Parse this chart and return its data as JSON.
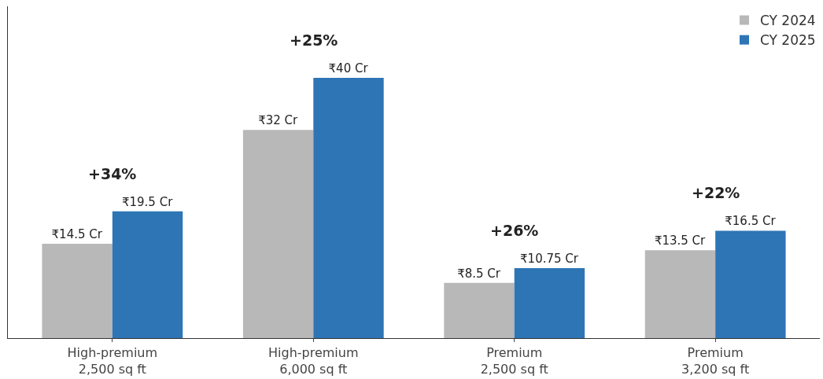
{
  "chart_data": {
    "type": "bar",
    "categories": [
      "High-premium\n2,500 sq ft",
      "High-premium\n6,000 sq ft",
      "Premium\n2,500 sq ft",
      "Premium\n3,200 sq ft"
    ],
    "series": [
      {
        "name": "CY 2024",
        "color": "#b8b8b8",
        "values": [
          14.5,
          32,
          8.5,
          13.5
        ],
        "value_labels": [
          "₹14.5 Cr",
          "₹32 Cr",
          "₹8.5 Cr",
          "₹13.5 Cr"
        ]
      },
      {
        "name": "CY 2025",
        "color": "#2e75b6",
        "values": [
          19.5,
          40,
          10.75,
          16.5
        ],
        "value_labels": [
          "₹19.5 Cr",
          "₹40 Cr",
          "₹10.75 Cr",
          "₹16.5 Cr"
        ]
      }
    ],
    "annotations": [
      "+34%",
      "+25%",
      "+26%",
      "+22%"
    ],
    "ylim": [
      0,
      51
    ],
    "tick_labels": "x",
    "legend": "top right"
  }
}
